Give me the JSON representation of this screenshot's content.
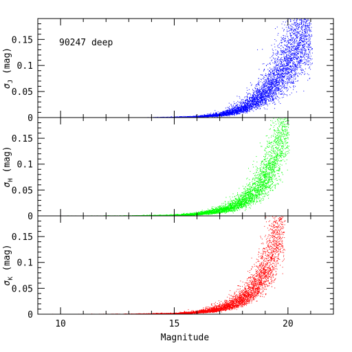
{
  "chart_data": [
    {
      "type": "scatter",
      "panel": "top",
      "annotation": "90247 deep",
      "ylabel": "σ_J (mag)",
      "ylabel_main": "σ",
      "ylabel_sub": "J",
      "ylabel_tail": " (mag)",
      "color": "#0000ff",
      "xlim": [
        9,
        22
      ],
      "ylim": [
        0,
        0.19
      ],
      "x_ticks": [
        "10",
        "15",
        "20"
      ],
      "y_ticks": [
        "0",
        "0.05",
        "0.1",
        "0.15"
      ],
      "series": [
        {
          "curve": [
            [
              13.5,
              0.0005
            ],
            [
              15,
              0.001
            ],
            [
              16,
              0.002
            ],
            [
              17,
              0.006
            ],
            [
              17.5,
              0.011
            ],
            [
              18,
              0.018
            ],
            [
              18.5,
              0.032
            ],
            [
              19,
              0.05
            ],
            [
              19.5,
              0.075
            ],
            [
              20,
              0.11
            ],
            [
              20.5,
              0.15
            ],
            [
              21,
              0.19
            ]
          ],
          "x_range": [
            13.5,
            21.0
          ],
          "spread": 0.32
        }
      ]
    },
    {
      "type": "scatter",
      "panel": "middle",
      "annotation": "",
      "ylabel": "σ_H (mag)",
      "ylabel_main": "σ",
      "ylabel_sub": "H",
      "ylabel_tail": " (mag)",
      "color": "#00ff00",
      "xlim": [
        9,
        22
      ],
      "ylim": [
        0,
        0.19
      ],
      "x_ticks": [
        "10",
        "15",
        "20"
      ],
      "y_ticks": [
        "0",
        "0.05",
        "0.1",
        "0.15"
      ],
      "series": [
        {
          "curve": [
            [
              9.3,
              0.0003
            ],
            [
              13,
              0.0006
            ],
            [
              15,
              0.0015
            ],
            [
              16,
              0.004
            ],
            [
              16.5,
              0.007
            ],
            [
              17,
              0.011
            ],
            [
              17.5,
              0.017
            ],
            [
              18,
              0.028
            ],
            [
              18.5,
              0.045
            ],
            [
              19,
              0.075
            ],
            [
              19.5,
              0.12
            ],
            [
              19.9,
              0.19
            ]
          ],
          "x_range": [
            9.3,
            20.0
          ],
          "spread": 0.3
        }
      ]
    },
    {
      "type": "scatter",
      "panel": "bottom",
      "annotation": "",
      "ylabel": "σ_K (mag)",
      "ylabel_main": "σ",
      "ylabel_sub": "K",
      "ylabel_tail": " (mag)",
      "color": "#ff0000",
      "xlim": [
        9,
        22
      ],
      "ylim": [
        0,
        0.19
      ],
      "x_ticks": [
        "10",
        "15",
        "20"
      ],
      "y_ticks": [
        "0",
        "0.05",
        "0.1",
        "0.15"
      ],
      "xlabel": "Magnitude",
      "series": [
        {
          "curve": [
            [
              9.3,
              0.0003
            ],
            [
              13,
              0.0006
            ],
            [
              15,
              0.0015
            ],
            [
              16,
              0.004
            ],
            [
              16.5,
              0.007
            ],
            [
              17,
              0.011
            ],
            [
              17.5,
              0.018
            ],
            [
              18,
              0.03
            ],
            [
              18.5,
              0.05
            ],
            [
              19,
              0.085
            ],
            [
              19.3,
              0.12
            ],
            [
              19.7,
              0.19
            ]
          ],
          "x_range": [
            9.3,
            19.8
          ],
          "spread": 0.3
        }
      ]
    }
  ],
  "xlabel": "Magnitude"
}
